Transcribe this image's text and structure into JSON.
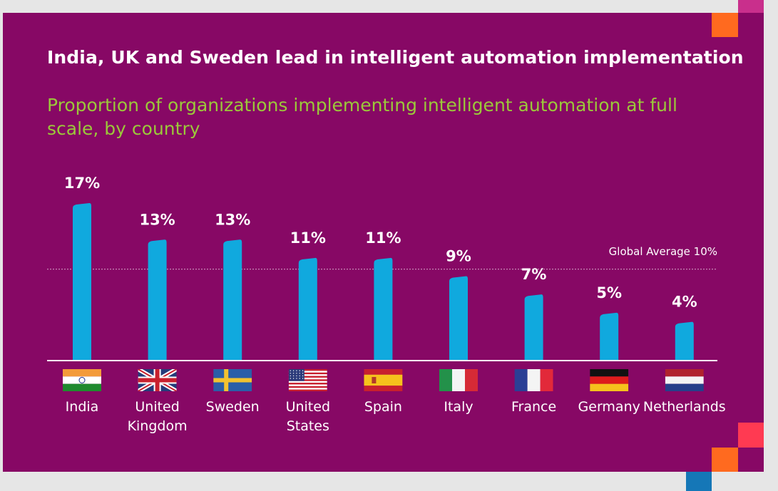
{
  "title": "India, UK and Sweden lead in intelligent automation implementation",
  "subtitle": "Proportion of organizations implementing intelligent automation at full scale, by country",
  "colors": {
    "background": "#870865",
    "bar": "#10a9de",
    "title": "#ffffff",
    "subtitle": "#9bc83a",
    "accent_orange": "#ff6a1f",
    "accent_pink": "#c92f8c",
    "accent_red": "#ff3a52",
    "accent_blue": "#1577b7"
  },
  "chart_data": {
    "type": "bar",
    "categories": [
      "India",
      "United\nKingdom",
      "Sweden",
      "United\nStates",
      "Spain",
      "Italy",
      "France",
      "Germany",
      "Netherlands"
    ],
    "values": [
      17,
      13,
      13,
      11,
      11,
      9,
      7,
      5,
      4
    ],
    "data_labels": [
      "17%",
      "13%",
      "13%",
      "11%",
      "11%",
      "9%",
      "7%",
      "5%",
      "4%"
    ],
    "flags": [
      "india-flag",
      "uk-flag",
      "sweden-flag",
      "usa-flag",
      "spain-flag",
      "italy-flag",
      "france-flag",
      "germany-flag",
      "netherlands-flag"
    ],
    "reference_line": {
      "value": 10,
      "label": "Global Average 10%"
    },
    "ylim": [
      0,
      17
    ]
  }
}
